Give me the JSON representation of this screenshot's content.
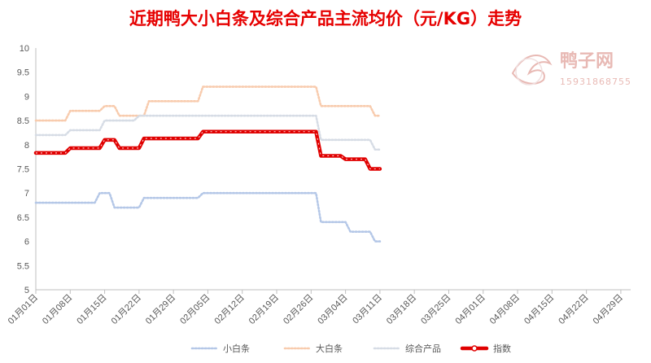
{
  "watermark": {
    "brand": "鸭子网",
    "phone": "15931868755"
  },
  "chart_data": {
    "type": "line",
    "title": "近期鸭大小白条及综合产品主流均价（元/KG）走势",
    "ylim": [
      5,
      10
    ],
    "yticks": [
      "5",
      "5.5",
      "6",
      "6.5",
      "7",
      "7.5",
      "8",
      "8.5",
      "9",
      "9.5",
      "10"
    ],
    "x_start": "2020-01-01",
    "x_end": "2020-05-01",
    "xticks": [
      "01月01日",
      "01月08日",
      "01月15日",
      "01月22日",
      "01月29日",
      "02月05日",
      "02月12日",
      "02月19日",
      "02月26日",
      "03月04日",
      "03月11日",
      "03月18日",
      "03月25日",
      "04月01日",
      "04月08日",
      "04月15日",
      "04月22日",
      "04月29日"
    ],
    "grid": false,
    "legend_position": "bottom",
    "series": [
      {
        "name": "小白条",
        "color": "#b4c7e7",
        "style": "dotted",
        "points": [
          [
            "01-01",
            6.8
          ],
          [
            "01-13",
            6.8
          ],
          [
            "01-14",
            7.0
          ],
          [
            "01-16",
            7.0
          ],
          [
            "01-17",
            6.7
          ],
          [
            "01-22",
            6.7
          ],
          [
            "01-23",
            6.9
          ],
          [
            "02-03",
            6.9
          ],
          [
            "02-04",
            7.0
          ],
          [
            "02-27",
            7.0
          ],
          [
            "02-28",
            6.4
          ],
          [
            "03-04",
            6.4
          ],
          [
            "03-05",
            6.2
          ],
          [
            "03-09",
            6.2
          ],
          [
            "03-10",
            6.0
          ],
          [
            "03-11",
            6.0
          ]
        ]
      },
      {
        "name": "大白条",
        "color": "#f8cbad",
        "style": "dotted",
        "points": [
          [
            "01-01",
            8.5
          ],
          [
            "01-07",
            8.5
          ],
          [
            "01-08",
            8.7
          ],
          [
            "01-14",
            8.7
          ],
          [
            "01-15",
            8.8
          ],
          [
            "01-17",
            8.8
          ],
          [
            "01-18",
            8.6
          ],
          [
            "01-23",
            8.6
          ],
          [
            "01-24",
            8.9
          ],
          [
            "02-03",
            8.9
          ],
          [
            "02-04",
            9.2
          ],
          [
            "02-27",
            9.2
          ],
          [
            "02-28",
            8.8
          ],
          [
            "03-09",
            8.8
          ],
          [
            "03-10",
            8.6
          ],
          [
            "03-11",
            8.6
          ]
        ]
      },
      {
        "name": "综合产品",
        "color": "#d6dce5",
        "style": "dotted",
        "points": [
          [
            "01-01",
            8.2
          ],
          [
            "01-07",
            8.2
          ],
          [
            "01-08",
            8.3
          ],
          [
            "01-14",
            8.3
          ],
          [
            "01-15",
            8.5
          ],
          [
            "01-21",
            8.5
          ],
          [
            "01-22",
            8.6
          ],
          [
            "02-27",
            8.6
          ],
          [
            "02-28",
            8.1
          ],
          [
            "03-09",
            8.1
          ],
          [
            "03-10",
            7.9
          ],
          [
            "03-11",
            7.9
          ]
        ]
      },
      {
        "name": "指数",
        "color": "#e00000",
        "style": "solid",
        "points": [
          [
            "01-01",
            7.83
          ],
          [
            "01-07",
            7.83
          ],
          [
            "01-08",
            7.93
          ],
          [
            "01-14",
            7.93
          ],
          [
            "01-15",
            8.1
          ],
          [
            "01-17",
            8.1
          ],
          [
            "01-18",
            7.93
          ],
          [
            "01-22",
            7.93
          ],
          [
            "01-23",
            8.13
          ],
          [
            "02-03",
            8.13
          ],
          [
            "02-04",
            8.27
          ],
          [
            "02-27",
            8.27
          ],
          [
            "02-28",
            7.77
          ],
          [
            "03-03",
            7.77
          ],
          [
            "03-04",
            7.7
          ],
          [
            "03-08",
            7.7
          ],
          [
            "03-09",
            7.5
          ],
          [
            "03-11",
            7.5
          ]
        ]
      }
    ]
  }
}
